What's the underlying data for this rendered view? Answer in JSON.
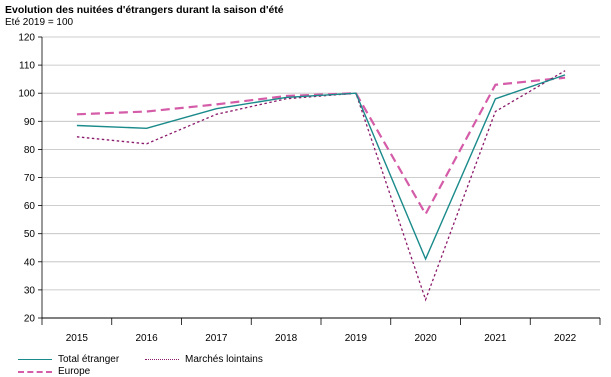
{
  "chart_data": {
    "type": "line",
    "title": "Evolution des nuitées d'étrangers durant la saison d'été",
    "subtitle": "Eté 2019 = 100",
    "xlabel": "",
    "ylabel": "",
    "categories": [
      "2015",
      "2016",
      "2017",
      "2018",
      "2019",
      "2020",
      "2021",
      "2022"
    ],
    "ylim": [
      20,
      120
    ],
    "yticks": [
      20,
      30,
      40,
      50,
      60,
      70,
      80,
      90,
      100,
      110,
      120
    ],
    "grid": "horizontal",
    "legend_position": "bottom-left",
    "series": [
      {
        "name": "Total étranger",
        "color": "#1a8a8a",
        "style": "solid",
        "values": [
          88.5,
          87.5,
          94.5,
          98.5,
          100,
          41,
          98,
          106.5
        ]
      },
      {
        "name": "Marchés lointains",
        "color": "#8b1a6b",
        "style": "dotted",
        "values": [
          84.5,
          82,
          92.5,
          98,
          100,
          26.5,
          93.5,
          108
        ]
      },
      {
        "name": "Europe",
        "color": "#d45ca8",
        "style": "dashed",
        "values": [
          92.5,
          93.5,
          96,
          99,
          100,
          57,
          103,
          105.5
        ]
      }
    ]
  }
}
